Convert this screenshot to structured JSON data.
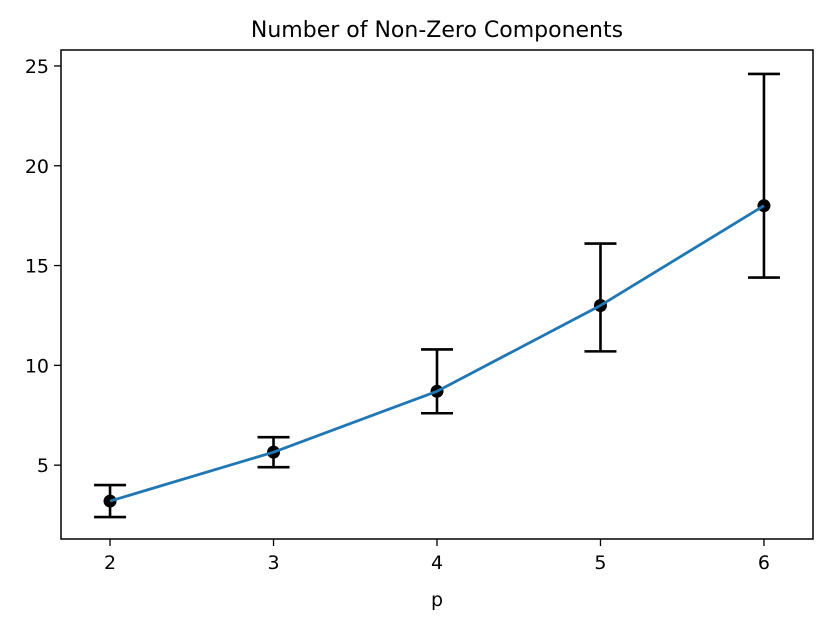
{
  "chart_data": {
    "type": "line",
    "title": "Number of Non-Zero Components",
    "xlabel": "p",
    "ylabel": "",
    "x": [
      2,
      3,
      4,
      5,
      6
    ],
    "x_ticks": [
      "2",
      "3",
      "4",
      "5",
      "6"
    ],
    "y_ticks": [
      "5",
      "10",
      "15",
      "20",
      "25"
    ],
    "y_tick_values": [
      5,
      10,
      15,
      20,
      25
    ],
    "xlim": [
      1.7,
      6.3
    ],
    "ylim": [
      1.3,
      25.8
    ],
    "series": [
      {
        "values": [
          3.2,
          5.65,
          8.7,
          13.0,
          18.0
        ],
        "err_low": [
          2.4,
          4.9,
          7.6,
          10.7,
          14.4
        ],
        "err_high": [
          4.0,
          6.4,
          10.8,
          16.1,
          24.6
        ],
        "color": "#1f77b4"
      }
    ],
    "marker_color": "#000000",
    "errorbar_color": "#000000",
    "grid": false,
    "legend": "none"
  }
}
